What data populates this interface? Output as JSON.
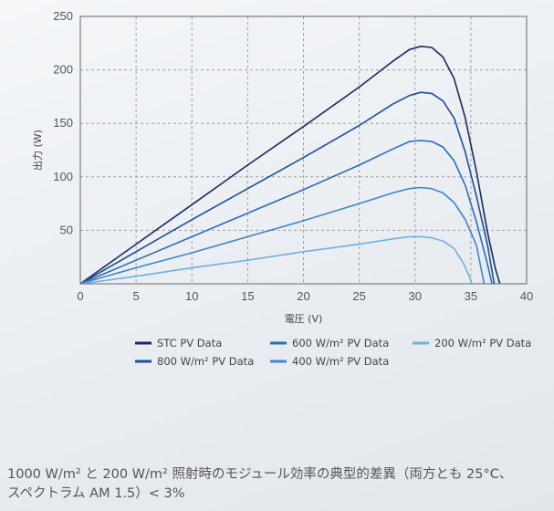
{
  "chart_data": {
    "type": "line",
    "xlabel": "電圧 (V)",
    "ylabel": "出力 (W)",
    "xlim": [
      0,
      40
    ],
    "ylim": [
      0,
      250
    ],
    "xticks": [
      "0",
      "5",
      "10",
      "15",
      "20",
      "25",
      "30",
      "35",
      "40"
    ],
    "yticks": [
      "50",
      "100",
      "150",
      "200",
      "250"
    ],
    "grid": true,
    "legend_placement": "bottom",
    "series": [
      {
        "name": "STC PV Data",
        "color": "#1b2a5e",
        "points": [
          [
            0,
            0
          ],
          [
            5,
            37
          ],
          [
            10,
            74
          ],
          [
            15,
            111
          ],
          [
            20,
            147
          ],
          [
            25,
            184
          ],
          [
            28,
            208
          ],
          [
            29.5,
            219
          ],
          [
            30.5,
            222
          ],
          [
            31.5,
            221
          ],
          [
            32.5,
            212
          ],
          [
            33.5,
            192
          ],
          [
            34.5,
            155
          ],
          [
            35.5,
            105
          ],
          [
            36.5,
            48
          ],
          [
            37.2,
            14
          ],
          [
            37.6,
            0
          ]
        ]
      },
      {
        "name": "800 W/m² PV Data",
        "color": "#1f4e96",
        "points": [
          [
            0,
            0
          ],
          [
            5,
            30
          ],
          [
            10,
            60
          ],
          [
            15,
            89
          ],
          [
            20,
            118
          ],
          [
            25,
            148
          ],
          [
            28,
            168
          ],
          [
            29.5,
            176
          ],
          [
            30.5,
            179
          ],
          [
            31.5,
            178
          ],
          [
            32.5,
            171
          ],
          [
            33.5,
            155
          ],
          [
            34.5,
            123
          ],
          [
            35.5,
            82
          ],
          [
            36.5,
            36
          ],
          [
            37.1,
            0
          ]
        ]
      },
      {
        "name": "600 W/m² PV Data",
        "color": "#2a6db8",
        "points": [
          [
            0,
            0
          ],
          [
            5,
            22
          ],
          [
            10,
            44
          ],
          [
            15,
            66
          ],
          [
            20,
            88
          ],
          [
            25,
            111
          ],
          [
            28,
            126
          ],
          [
            29.5,
            133
          ],
          [
            30.5,
            134
          ],
          [
            31.5,
            133
          ],
          [
            32.5,
            128
          ],
          [
            33.5,
            115
          ],
          [
            34.5,
            92
          ],
          [
            35.5,
            58
          ],
          [
            36.5,
            18
          ],
          [
            36.9,
            0
          ]
        ]
      },
      {
        "name": "400 W/m² PV Data",
        "color": "#3f86c6",
        "points": [
          [
            0,
            0
          ],
          [
            5,
            15
          ],
          [
            10,
            29
          ],
          [
            15,
            44
          ],
          [
            20,
            59
          ],
          [
            25,
            75
          ],
          [
            28,
            85
          ],
          [
            29.5,
            89
          ],
          [
            30.5,
            90
          ],
          [
            31.5,
            89
          ],
          [
            32.5,
            85
          ],
          [
            33.5,
            76
          ],
          [
            34.5,
            60
          ],
          [
            35.5,
            36
          ],
          [
            36.2,
            0
          ]
        ]
      },
      {
        "name": "200 W/m² PV Data",
        "color": "#6fb1e0",
        "points": [
          [
            0,
            0
          ],
          [
            5,
            7
          ],
          [
            10,
            15
          ],
          [
            15,
            22
          ],
          [
            20,
            30
          ],
          [
            25,
            37
          ],
          [
            28,
            42
          ],
          [
            29.5,
            44
          ],
          [
            30.5,
            44
          ],
          [
            31.5,
            43
          ],
          [
            32.5,
            40
          ],
          [
            33.5,
            33
          ],
          [
            34.3,
            20
          ],
          [
            34.9,
            6
          ],
          [
            35.1,
            0
          ]
        ]
      }
    ]
  },
  "legend": {
    "items": [
      {
        "label": "STC PV Data",
        "color": "#1b2a5e"
      },
      {
        "label": "600 W/m² PV Data",
        "color": "#2a6db8"
      },
      {
        "label": "200 W/m² PV Data",
        "color": "#6fb1e0"
      },
      {
        "label": "800 W/m² PV Data",
        "color": "#1f4e96"
      },
      {
        "label": "400 W/m² PV Data",
        "color": "#3f86c6"
      }
    ]
  },
  "caption": {
    "line1": "1000 W/m² と 200 W/m² 照射時のモジュール効率の典型的差異（両方とも 25°C、",
    "line2": "スペクトラム AM 1.5）< 3%"
  }
}
